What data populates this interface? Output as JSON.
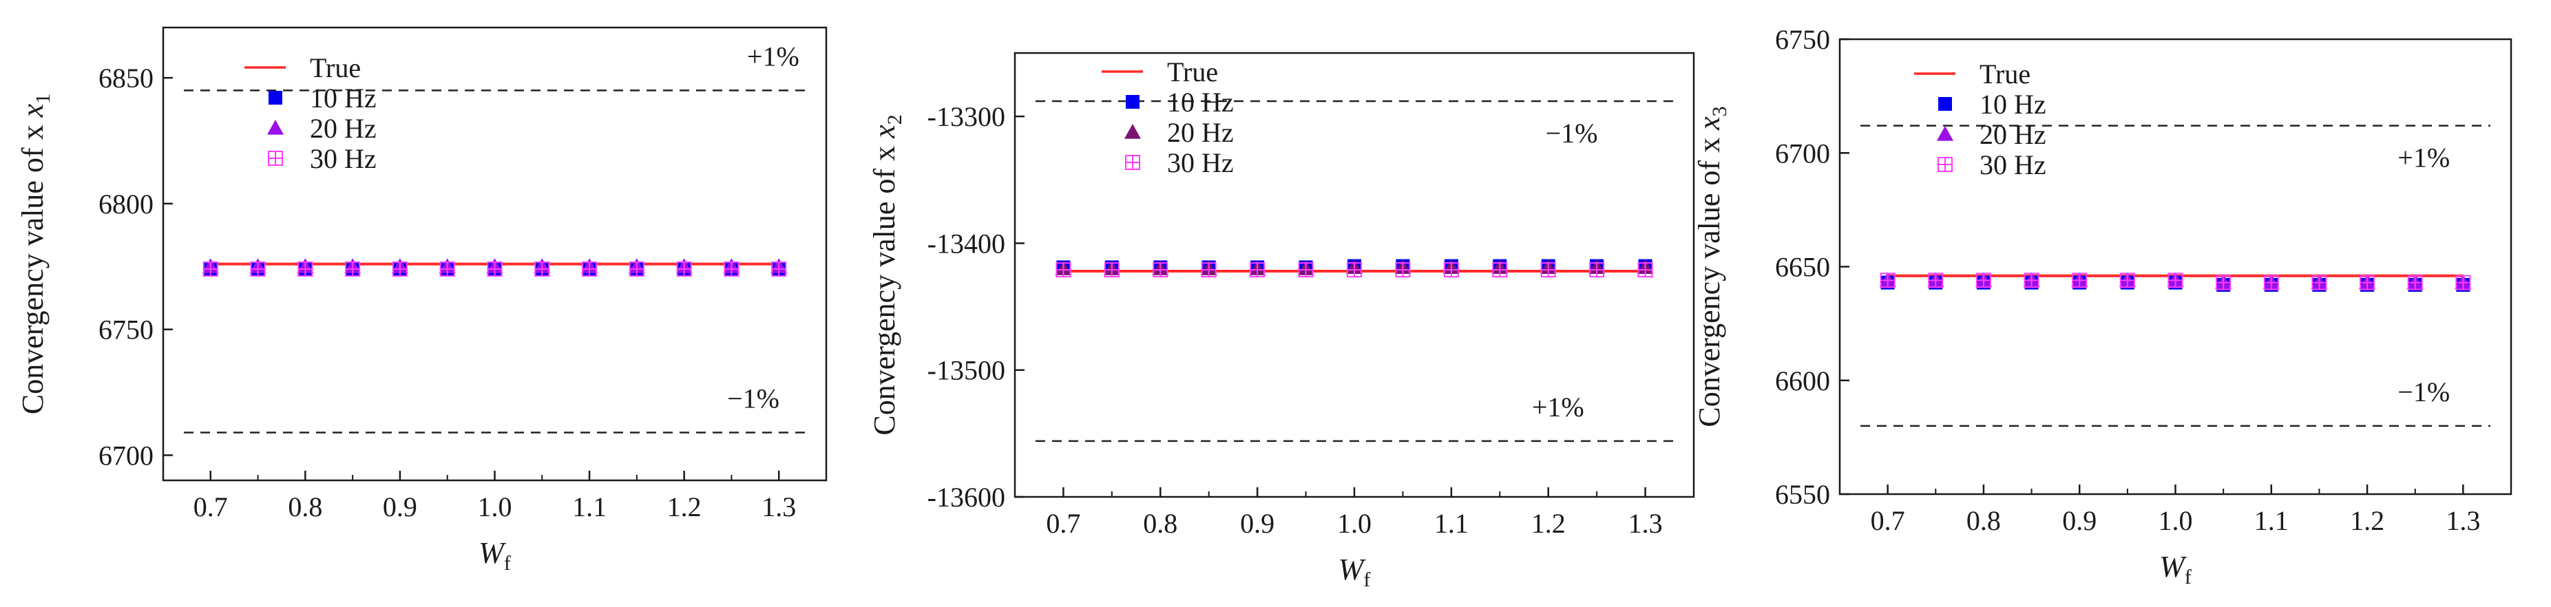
{
  "colors": {
    "true_line": "#ff2b2b",
    "series_10hz": "#0000ee",
    "series_20hz": "#9a10e6",
    "series_20hz_c": "#7a1470",
    "series_30hz": "#ff3cff",
    "band_line": "#222222",
    "axis": "#1a1a1a"
  },
  "chart_data": [
    {
      "type": "scatter",
      "ylabel": "Convergency value of x",
      "ylabel_sub": "1",
      "xlabel": "W",
      "xlabel_sub": "f",
      "xlim": [
        0.65,
        1.35
      ],
      "ylim": [
        6690,
        6870
      ],
      "xticks": [
        0.7,
        0.8,
        0.9,
        1.0,
        1.1,
        1.2,
        1.3
      ],
      "xtick_labels": [
        "0.7",
        "0.8",
        "0.9",
        "1.0",
        "1.1",
        "1.2",
        "1.3"
      ],
      "yticks": [
        6700,
        6750,
        6800,
        6850
      ],
      "ytick_labels": [
        "6700",
        "6750",
        "6800",
        "6850"
      ],
      "legend": [
        "True",
        "10 Hz",
        "20 Hz",
        "30 Hz"
      ],
      "markers": [
        "square",
        "triangle-up",
        "boxplus"
      ],
      "true_value": 6776,
      "plus_band": {
        "value": 6845,
        "label": "+1%"
      },
      "minus_band": {
        "value": 6709,
        "label": "−1%"
      },
      "x": [
        0.7,
        0.75,
        0.8,
        0.85,
        0.9,
        0.95,
        1.0,
        1.05,
        1.1,
        1.15,
        1.2,
        1.25,
        1.3
      ],
      "series": [
        {
          "name": "10 Hz",
          "values": [
            6774,
            6774,
            6774,
            6774,
            6774,
            6774,
            6774,
            6774,
            6774,
            6774,
            6774,
            6774,
            6774
          ]
        },
        {
          "name": "20 Hz",
          "values": [
            6775,
            6775,
            6775,
            6775,
            6775,
            6775,
            6775,
            6775,
            6775,
            6775,
            6775,
            6775,
            6775
          ]
        },
        {
          "name": "30 Hz",
          "values": [
            6774,
            6774,
            6774,
            6774,
            6774,
            6774,
            6774,
            6774,
            6774,
            6774,
            6774,
            6774,
            6774
          ]
        }
      ]
    },
    {
      "type": "scatter",
      "ylabel": "Convergency value of x",
      "ylabel_sub": "2",
      "xlabel": "W",
      "xlabel_sub": "f",
      "xlim": [
        0.65,
        1.35
      ],
      "ylim": [
        -13600,
        -13250
      ],
      "xticks": [
        0.7,
        0.8,
        0.9,
        1.0,
        1.1,
        1.2,
        1.3
      ],
      "xtick_labels": [
        "0.7",
        "0.8",
        "0.9",
        "1.0",
        "1.1",
        "1.2",
        "1.3"
      ],
      "yticks": [
        -13600,
        -13500,
        -13400,
        -13300
      ],
      "ytick_labels": [
        "-13600",
        "-13500",
        "-13400",
        "-13300"
      ],
      "legend": [
        "True",
        "10 Hz",
        "20 Hz",
        "30 Hz"
      ],
      "markers": [
        "square",
        "triangle-up",
        "boxplus"
      ],
      "true_value": -13422,
      "plus_band": {
        "value": -13556,
        "label": "+1%"
      },
      "minus_band": {
        "value": -13288,
        "label": "−1%"
      },
      "x": [
        0.7,
        0.75,
        0.8,
        0.85,
        0.9,
        0.95,
        1.0,
        1.05,
        1.1,
        1.15,
        1.2,
        1.25,
        1.3
      ],
      "series": [
        {
          "name": "10 Hz",
          "values": [
            -13419,
            -13419,
            -13419,
            -13419,
            -13419,
            -13419,
            -13418,
            -13418,
            -13418,
            -13418,
            -13418,
            -13418,
            -13418
          ]
        },
        {
          "name": "20 Hz",
          "values": [
            -13420,
            -13420,
            -13420,
            -13420,
            -13420,
            -13420,
            -13419,
            -13419,
            -13419,
            -13419,
            -13419,
            -13419,
            -13419
          ]
        },
        {
          "name": "30 Hz",
          "values": [
            -13421,
            -13421,
            -13421,
            -13421,
            -13421,
            -13421,
            -13421,
            -13421,
            -13421,
            -13421,
            -13421,
            -13421,
            -13421
          ]
        }
      ]
    },
    {
      "type": "scatter",
      "ylabel": "Convergency value of x",
      "ylabel_sub": "3",
      "xlabel": "W",
      "xlabel_sub": "f",
      "xlim": [
        0.65,
        1.35
      ],
      "ylim": [
        6550,
        6750
      ],
      "xticks": [
        0.7,
        0.8,
        0.9,
        1.0,
        1.1,
        1.2,
        1.3
      ],
      "xtick_labels": [
        "0.7",
        "0.8",
        "0.9",
        "1.0",
        "1.1",
        "1.2",
        "1.3"
      ],
      "yticks": [
        6550,
        6600,
        6650,
        6700,
        6750
      ],
      "ytick_labels": [
        "6550",
        "6600",
        "6650",
        "6700",
        "6750"
      ],
      "legend": [
        "True",
        "10 Hz",
        "20 Hz",
        "30 Hz"
      ],
      "markers": [
        "square",
        "triangle-up",
        "boxplus"
      ],
      "true_value": 6646,
      "plus_band": {
        "value": 6712,
        "label": "+1%"
      },
      "minus_band": {
        "value": 6580,
        "label": "−1%"
      },
      "x": [
        0.7,
        0.75,
        0.8,
        0.85,
        0.9,
        0.95,
        1.0,
        1.05,
        1.1,
        1.15,
        1.2,
        1.25,
        1.3
      ],
      "series": [
        {
          "name": "10 Hz",
          "values": [
            6643,
            6643,
            6643,
            6643,
            6643,
            6643,
            6643,
            6642,
            6642,
            6642,
            6642,
            6642,
            6642
          ]
        },
        {
          "name": "20 Hz",
          "values": [
            6644,
            6644,
            6644,
            6644,
            6644,
            6644,
            6644,
            6643,
            6643,
            6643,
            6643,
            6643,
            6643
          ]
        },
        {
          "name": "30 Hz",
          "values": [
            6644,
            6644,
            6644,
            6644,
            6644,
            6644,
            6644,
            6643,
            6643,
            6643,
            6643,
            6643,
            6643
          ]
        }
      ]
    }
  ]
}
